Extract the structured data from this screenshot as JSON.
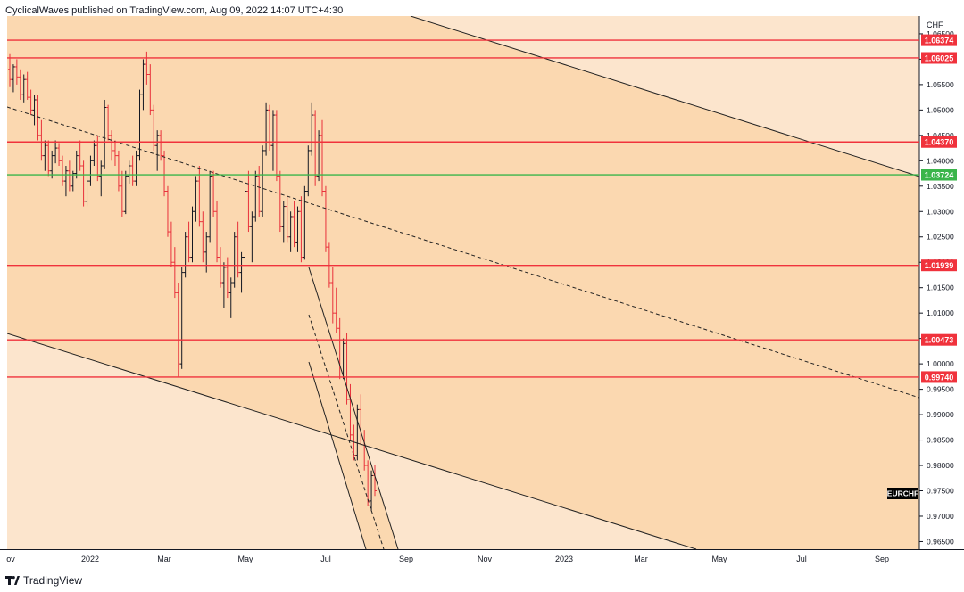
{
  "header": {
    "text": "CyclicalWaves published on TradingView.com, Aug 09, 2022 14:07 UTC+4:30"
  },
  "footer": {
    "brand": "TradingView",
    "logo_icon": "tradingview-logo-icon"
  },
  "colors": {
    "zone_dark": "#fbd8b0",
    "zone_light": "#fce5cd",
    "red_level": "#f0323c",
    "green_level": "#3ab54a",
    "candle_up": "#131722",
    "candle_down": "#e8303a",
    "symbol_bg": "#000000"
  },
  "chart_data": {
    "type": "candlestick",
    "symbol": "EURCHF",
    "currency": "CHF",
    "ylim": [
      0.9635,
      1.0685
    ],
    "y_ticks": [
      "0.96500",
      "0.97000",
      "0.97500",
      "0.98000",
      "0.98500",
      "0.99000",
      "0.99500",
      "1.00000",
      "1.00500",
      "1.01000",
      "1.01500",
      "1.02000",
      "1.02500",
      "1.03000",
      "1.03500",
      "1.04000",
      "1.04500",
      "1.05000",
      "1.05500",
      "1.06000",
      "1.06500"
    ],
    "x_ticks": [
      "ov",
      "2022",
      "Mar",
      "May",
      "Jul",
      "Sep",
      "Nov",
      "2023",
      "Mar",
      "May",
      "Jul",
      "Sep"
    ],
    "horizontal_levels": [
      {
        "value": 1.06374,
        "label": "1.06374",
        "color": "red"
      },
      {
        "value": 1.06025,
        "label": "1.06025",
        "color": "red"
      },
      {
        "value": 1.0437,
        "label": "1.04370",
        "color": "red"
      },
      {
        "value": 1.03724,
        "label": "1.03724",
        "color": "green"
      },
      {
        "value": 1.01939,
        "label": "1.01939",
        "color": "red"
      },
      {
        "value": 1.00473,
        "label": "1.00473",
        "color": "red"
      },
      {
        "value": 0.9974,
        "label": "0.99740",
        "color": "red"
      }
    ],
    "candles": [
      [
        1.058,
        1.061,
        1.0545,
        1.056
      ],
      [
        1.056,
        1.059,
        1.0535,
        1.0585
      ],
      [
        1.0585,
        1.06,
        1.055,
        1.0565
      ],
      [
        1.0565,
        1.058,
        1.052,
        1.053
      ],
      [
        1.053,
        1.057,
        1.0515,
        1.056
      ],
      [
        1.056,
        1.0575,
        1.052,
        1.0525
      ],
      [
        1.0525,
        1.054,
        1.049,
        1.05
      ],
      [
        1.05,
        1.053,
        1.047,
        1.052
      ],
      [
        1.052,
        1.053,
        1.044,
        1.045
      ],
      [
        1.045,
        1.048,
        1.04,
        1.041
      ],
      [
        1.041,
        1.044,
        1.038,
        1.043
      ],
      [
        1.043,
        1.044,
        1.037,
        1.038
      ],
      [
        1.038,
        1.042,
        1.0365,
        1.041
      ],
      [
        1.041,
        1.044,
        1.0395,
        1.0425
      ],
      [
        1.0425,
        1.0435,
        1.039,
        1.04
      ],
      [
        1.04,
        1.041,
        1.035,
        1.036
      ],
      [
        1.036,
        1.039,
        1.033,
        1.038
      ],
      [
        1.038,
        1.04,
        1.034,
        1.035
      ],
      [
        1.035,
        1.038,
        1.034,
        1.0375
      ],
      [
        1.0375,
        1.042,
        1.0365,
        1.041
      ],
      [
        1.041,
        1.044,
        1.038,
        1.039
      ],
      [
        1.039,
        1.04,
        1.031,
        1.032
      ],
      [
        1.032,
        1.037,
        1.031,
        1.036
      ],
      [
        1.036,
        1.041,
        1.035,
        1.04
      ],
      [
        1.04,
        1.044,
        1.039,
        1.043
      ],
      [
        1.043,
        1.045,
        1.036,
        1.037
      ],
      [
        1.037,
        1.04,
        1.033,
        1.039
      ],
      [
        1.039,
        1.052,
        1.0385,
        1.0505
      ],
      [
        1.0505,
        1.051,
        1.044,
        1.045
      ],
      [
        1.045,
        1.046,
        1.04,
        1.042
      ],
      [
        1.042,
        1.044,
        1.039,
        1.041
      ],
      [
        1.041,
        1.042,
        1.034,
        1.035
      ],
      [
        1.035,
        1.038,
        1.029,
        1.03
      ],
      [
        1.03,
        1.038,
        1.0295,
        1.037
      ],
      [
        1.037,
        1.04,
        1.0355,
        1.039
      ],
      [
        1.039,
        1.041,
        1.035,
        1.036
      ],
      [
        1.036,
        1.042,
        1.035,
        1.041
      ],
      [
        1.041,
        1.054,
        1.04,
        1.053
      ],
      [
        1.053,
        1.06,
        1.05,
        1.059
      ],
      [
        1.059,
        1.0615,
        1.055,
        1.057
      ],
      [
        1.057,
        1.059,
        1.049,
        1.05
      ],
      [
        1.05,
        1.051,
        1.042,
        1.043
      ],
      [
        1.043,
        1.046,
        1.038,
        1.045
      ],
      [
        1.045,
        1.046,
        1.04,
        1.041
      ],
      [
        1.041,
        1.042,
        1.033,
        1.034
      ],
      [
        1.034,
        1.035,
        1.025,
        1.026
      ],
      [
        1.026,
        1.028,
        1.019,
        1.02
      ],
      [
        1.02,
        1.023,
        1.013,
        1.014
      ],
      [
        1.014,
        1.016,
        0.9975,
        1.0
      ],
      [
        1.0,
        1.019,
        0.999,
        1.018
      ],
      [
        1.018,
        1.026,
        1.017,
        1.025
      ],
      [
        1.025,
        1.028,
        1.02,
        1.021
      ],
      [
        1.021,
        1.031,
        1.02,
        1.03
      ],
      [
        1.03,
        1.037,
        1.028,
        1.036
      ],
      [
        1.036,
        1.039,
        1.027,
        1.028
      ],
      [
        1.028,
        1.03,
        1.02,
        1.022
      ],
      [
        1.022,
        1.026,
        1.018,
        1.025
      ],
      [
        1.025,
        1.038,
        1.024,
        1.037
      ],
      [
        1.037,
        1.038,
        1.029,
        1.03
      ],
      [
        1.03,
        1.032,
        1.02,
        1.021
      ],
      [
        1.021,
        1.023,
        1.015,
        1.016
      ],
      [
        1.016,
        1.02,
        1.011,
        1.019
      ],
      [
        1.019,
        1.021,
        1.013,
        1.014
      ],
      [
        1.014,
        1.017,
        1.009,
        1.016
      ],
      [
        1.016,
        1.026,
        1.015,
        1.025
      ],
      [
        1.025,
        1.028,
        1.017,
        1.018
      ],
      [
        1.018,
        1.022,
        1.014,
        1.021
      ],
      [
        1.021,
        1.035,
        1.02,
        1.034
      ],
      [
        1.034,
        1.038,
        1.026,
        1.027
      ],
      [
        1.027,
        1.03,
        1.02,
        1.029
      ],
      [
        1.029,
        1.038,
        1.028,
        1.037
      ],
      [
        1.037,
        1.039,
        1.029,
        1.03
      ],
      [
        1.03,
        1.043,
        1.029,
        1.042
      ],
      [
        1.042,
        1.0515,
        1.041,
        1.05
      ],
      [
        1.05,
        1.051,
        1.042,
        1.043
      ],
      [
        1.043,
        1.05,
        1.038,
        1.049
      ],
      [
        1.049,
        1.05,
        1.036,
        1.037
      ],
      [
        1.037,
        1.038,
        1.026,
        1.027
      ],
      [
        1.027,
        1.032,
        1.024,
        1.031
      ],
      [
        1.031,
        1.033,
        1.024,
        1.025
      ],
      [
        1.025,
        1.03,
        1.022,
        1.029
      ],
      [
        1.029,
        1.032,
        1.023,
        1.024
      ],
      [
        1.024,
        1.031,
        1.022,
        1.03
      ],
      [
        1.03,
        1.033,
        1.02,
        1.021
      ],
      [
        1.021,
        1.035,
        1.0205,
        1.034
      ],
      [
        1.034,
        1.043,
        1.033,
        1.042
      ],
      [
        1.042,
        1.0515,
        1.041,
        1.049
      ],
      [
        1.049,
        1.05,
        1.035,
        1.037
      ],
      [
        1.037,
        1.046,
        1.036,
        1.045
      ],
      [
        1.045,
        1.048,
        1.033,
        1.034
      ],
      [
        1.034,
        1.035,
        1.022,
        1.023
      ],
      [
        1.023,
        1.024,
        1.015,
        1.016
      ],
      [
        1.016,
        1.019,
        1.008,
        1.01
      ],
      [
        1.01,
        1.015,
        1.006,
        1.007
      ],
      [
        1.007,
        1.009,
        0.997,
        0.998
      ],
      [
        0.998,
        1.005,
        0.997,
        1.004
      ],
      [
        1.004,
        1.006,
        0.992,
        0.993
      ],
      [
        0.993,
        0.996,
        0.985,
        0.986
      ],
      [
        0.986,
        0.988,
        0.981,
        0.982
      ],
      [
        0.982,
        0.992,
        0.981,
        0.991
      ],
      [
        0.991,
        0.994,
        0.984,
        0.985
      ],
      [
        0.985,
        0.987,
        0.979,
        0.98
      ],
      [
        0.98,
        0.981,
        0.972,
        0.973
      ],
      [
        0.973,
        0.979,
        0.971,
        0.978
      ],
      [
        0.978,
        0.98,
        0.974,
        0.975
      ]
    ]
  }
}
